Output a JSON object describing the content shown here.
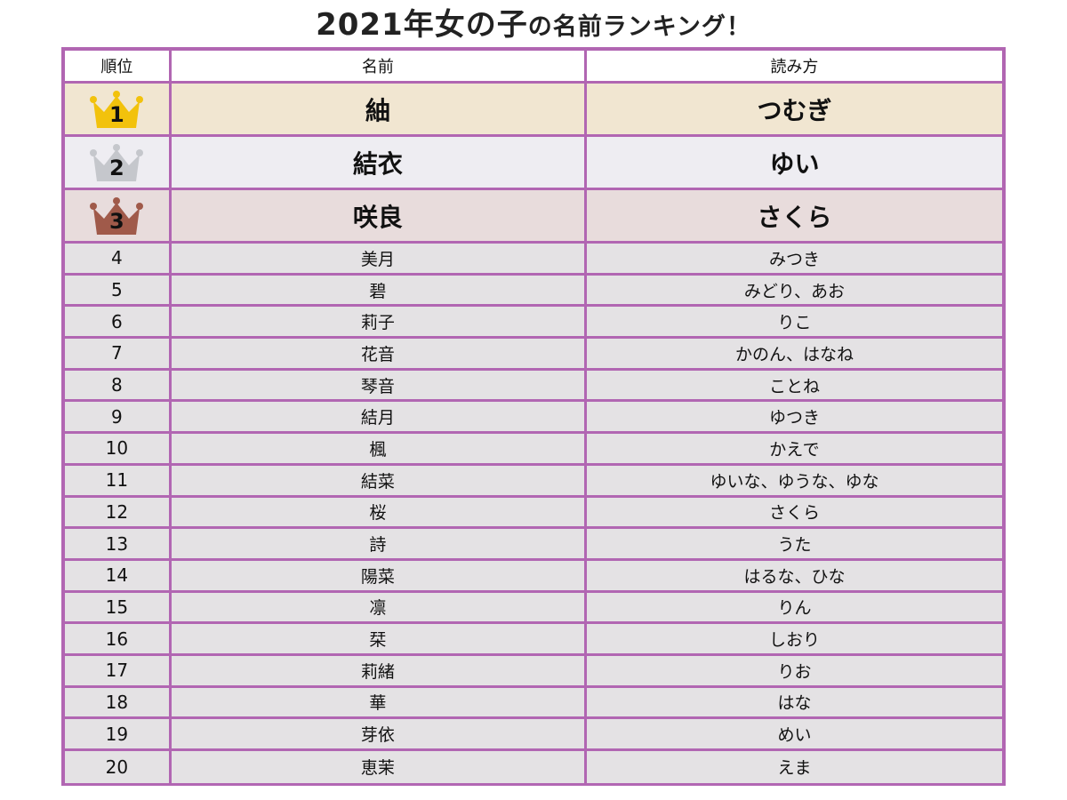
{
  "title": {
    "main": "2021年女の子",
    "sub": "の名前ランキング！"
  },
  "headers": {
    "rank": "順位",
    "name": "名前",
    "reading": "読み方"
  },
  "top3": [
    {
      "rank": "1",
      "name": "紬",
      "reading": "つむぎ",
      "crown_color": "#f2c20c"
    },
    {
      "rank": "2",
      "name": "結衣",
      "reading": "ゆい",
      "crown_color": "#c5c7cc"
    },
    {
      "rank": "3",
      "name": "咲良",
      "reading": "さくら",
      "crown_color": "#a05a4a"
    }
  ],
  "rows": [
    {
      "rank": "4",
      "name": "美月",
      "reading": "みつき"
    },
    {
      "rank": "5",
      "name": "碧",
      "reading": "みどり、あお"
    },
    {
      "rank": "6",
      "name": "莉子",
      "reading": "りこ"
    },
    {
      "rank": "7",
      "name": "花音",
      "reading": "かのん、はなね"
    },
    {
      "rank": "8",
      "name": "琴音",
      "reading": "ことね"
    },
    {
      "rank": "9",
      "name": "結月",
      "reading": "ゆつき"
    },
    {
      "rank": "10",
      "name": "楓",
      "reading": "かえで"
    },
    {
      "rank": "11",
      "name": "結菜",
      "reading": "ゆいな、ゆうな、ゆな"
    },
    {
      "rank": "12",
      "name": "桜",
      "reading": "さくら"
    },
    {
      "rank": "13",
      "name": "詩",
      "reading": "うた"
    },
    {
      "rank": "14",
      "name": "陽菜",
      "reading": "はるな、ひな"
    },
    {
      "rank": "15",
      "name": "凛",
      "reading": "りん"
    },
    {
      "rank": "16",
      "name": "栞",
      "reading": "しおり"
    },
    {
      "rank": "17",
      "name": "莉緒",
      "reading": "りお"
    },
    {
      "rank": "18",
      "name": "華",
      "reading": "はな"
    },
    {
      "rank": "19",
      "name": "芽依",
      "reading": "めい"
    },
    {
      "rank": "20",
      "name": "恵茉",
      "reading": "えま"
    }
  ],
  "colors": {
    "border": "#b166b2",
    "gold_row": "#f1e6d1",
    "silver_row": "#eeedf2",
    "bronze_row": "#e8dcdc",
    "normal_row": "#e4e2e4"
  }
}
